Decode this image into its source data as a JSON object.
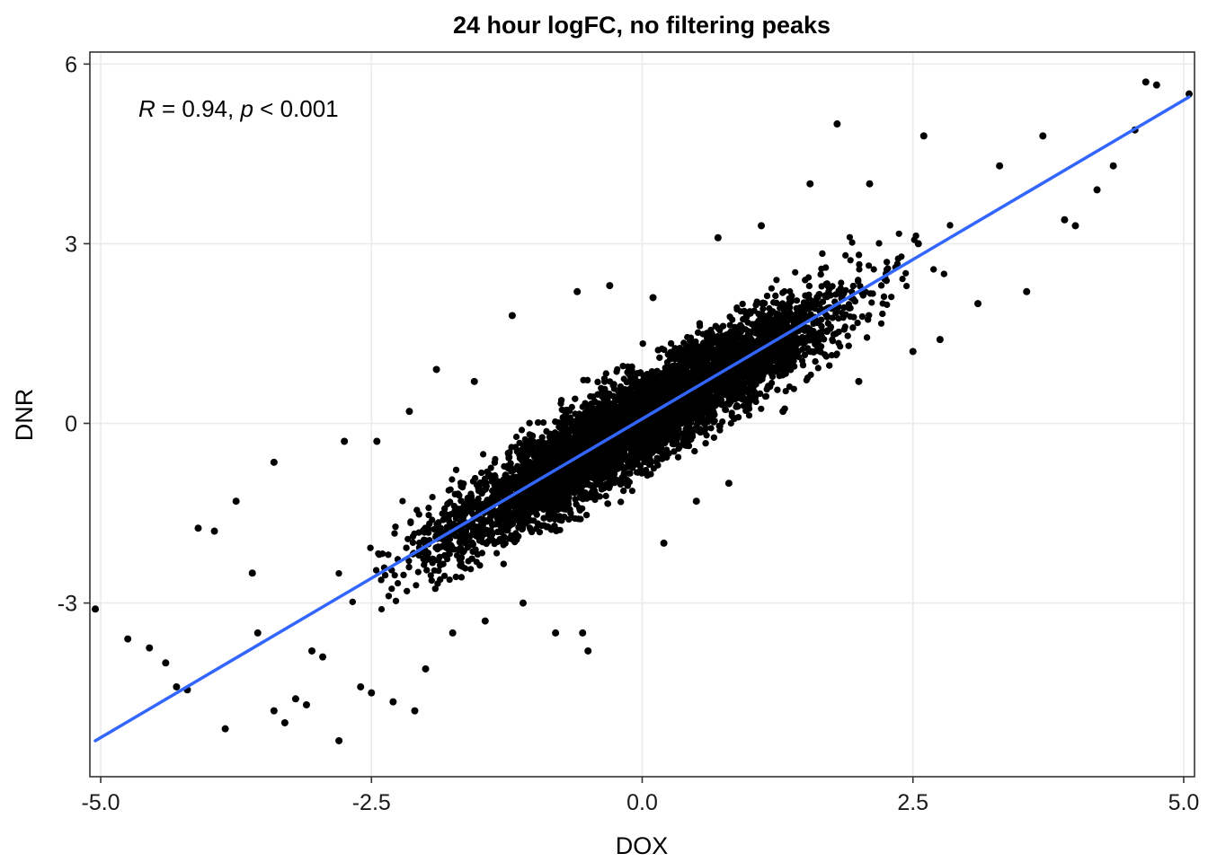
{
  "chart_data": {
    "type": "scatter",
    "title": "24 hour logFC, no filtering peaks",
    "xlabel": "DOX",
    "ylabel": "DNR",
    "xlim": [
      -5.1,
      5.1
    ],
    "ylim": [
      -5.9,
      6.2
    ],
    "x_ticks": [
      -5.0,
      -2.5,
      0.0,
      2.5,
      5.0
    ],
    "x_tick_labels": [
      "-5.0",
      "-2.5",
      "0.0",
      "2.5",
      "5.0"
    ],
    "y_ticks": [
      -3,
      0,
      3,
      6
    ],
    "y_tick_labels": [
      "-3",
      "0",
      "3",
      "6"
    ],
    "grid": true,
    "point_color": "#000000",
    "fit_line": {
      "color": "#3366FF",
      "x": [
        -5.05,
        5.05
      ],
      "y": [
        -5.3,
        5.45
      ]
    },
    "annotation": {
      "r_symbol": "R",
      "r_text": " = 0.94, ",
      "p_symbol": "p",
      "p_text": " < 0.001"
    },
    "series": [
      {
        "points": [
          [
            -5.05,
            -3.1
          ],
          [
            -4.75,
            -3.6
          ],
          [
            -4.55,
            -3.75
          ],
          [
            -4.4,
            -4.0
          ],
          [
            -4.3,
            -4.4
          ],
          [
            -4.2,
            -4.45
          ],
          [
            -4.1,
            -1.75
          ],
          [
            -3.95,
            -1.8
          ],
          [
            -3.85,
            -5.1
          ],
          [
            -3.75,
            -1.3
          ],
          [
            -3.6,
            -2.5
          ],
          [
            -3.55,
            -3.5
          ],
          [
            -3.4,
            -4.8
          ],
          [
            -3.3,
            -5.0
          ],
          [
            -3.2,
            -4.6
          ],
          [
            -3.1,
            -4.7
          ],
          [
            -3.05,
            -3.8
          ],
          [
            -3.4,
            -0.65
          ],
          [
            -2.95,
            -3.9
          ],
          [
            -2.8,
            -5.3
          ],
          [
            -2.75,
            -0.3
          ],
          [
            -2.6,
            -4.4
          ],
          [
            -2.5,
            -4.5
          ],
          [
            -2.45,
            -0.3
          ],
          [
            -2.3,
            -4.65
          ],
          [
            -2.15,
            0.2
          ],
          [
            -2.1,
            -4.8
          ],
          [
            -2.0,
            -4.1
          ],
          [
            -1.9,
            0.9
          ],
          [
            -1.75,
            -3.5
          ],
          [
            -1.55,
            0.7
          ],
          [
            -1.45,
            -3.3
          ],
          [
            -1.2,
            1.8
          ],
          [
            -1.1,
            -3.0
          ],
          [
            -0.8,
            -3.5
          ],
          [
            -0.6,
            2.2
          ],
          [
            -0.55,
            -3.5
          ],
          [
            -0.5,
            -3.8
          ],
          [
            -0.3,
            2.3
          ],
          [
            0.1,
            2.1
          ],
          [
            0.2,
            -2.0
          ],
          [
            0.5,
            -1.3
          ],
          [
            0.7,
            3.1
          ],
          [
            0.8,
            -1.0
          ],
          [
            1.1,
            3.3
          ],
          [
            1.3,
            0.2
          ],
          [
            1.55,
            4.0
          ],
          [
            1.8,
            5.0
          ],
          [
            2.0,
            0.7
          ],
          [
            2.1,
            4.0
          ],
          [
            2.5,
            1.2
          ],
          [
            2.55,
            3.0
          ],
          [
            2.6,
            4.8
          ],
          [
            2.75,
            1.4
          ],
          [
            3.1,
            2.0
          ],
          [
            3.3,
            4.3
          ],
          [
            3.55,
            2.2
          ],
          [
            3.7,
            4.8
          ],
          [
            3.9,
            3.4
          ],
          [
            4.0,
            3.3
          ],
          [
            4.2,
            3.9
          ],
          [
            4.35,
            4.3
          ],
          [
            4.55,
            4.9
          ],
          [
            4.65,
            5.7
          ],
          [
            4.75,
            5.65
          ],
          [
            5.05,
            5.5
          ]
        ]
      }
    ]
  }
}
